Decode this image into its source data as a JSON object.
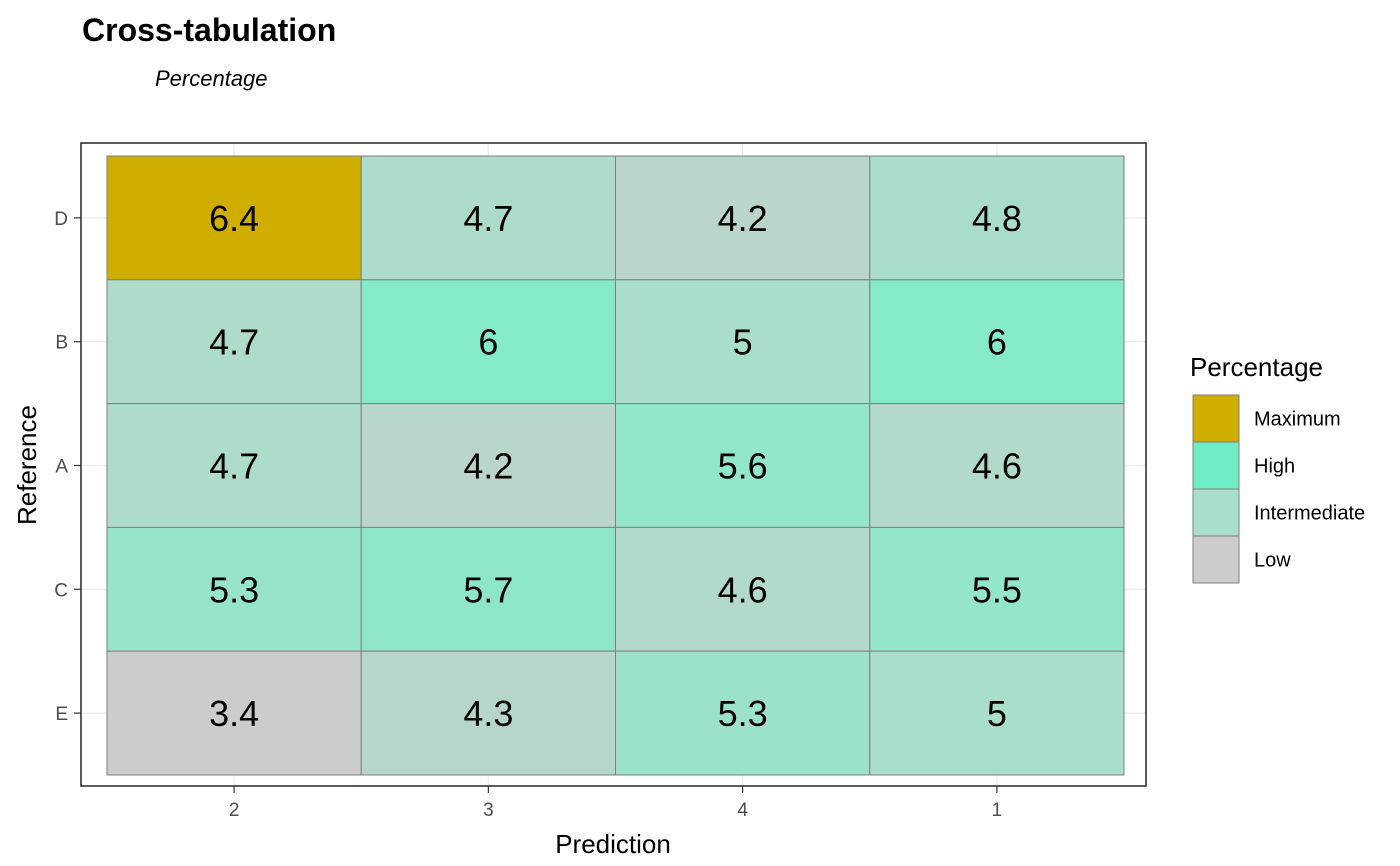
{
  "chart_data": {
    "type": "heatmap",
    "title": "Cross-tabulation",
    "subtitle": "Percentage",
    "xlabel": "Prediction",
    "ylabel": "Reference",
    "x_categories": [
      "2",
      "3",
      "4",
      "1"
    ],
    "y_categories": [
      "D",
      "B",
      "A",
      "C",
      "E"
    ],
    "values": [
      [
        6.4,
        4.7,
        4.2,
        4.8
      ],
      [
        4.7,
        6,
        5,
        6
      ],
      [
        4.7,
        4.2,
        5.6,
        4.6
      ],
      [
        5.3,
        5.7,
        4.6,
        5.5
      ],
      [
        3.4,
        4.3,
        5.3,
        5
      ]
    ],
    "cell_labels": [
      [
        "6.4",
        "4.7",
        "4.2",
        "4.8"
      ],
      [
        "4.7",
        "6",
        "5",
        "6"
      ],
      [
        "4.7",
        "4.2",
        "5.6",
        "4.6"
      ],
      [
        "5.3",
        "5.7",
        "4.6",
        "5.5"
      ],
      [
        "3.4",
        "4.3",
        "5.3",
        "5"
      ]
    ],
    "cell_colors": [
      [
        "#CFAE00",
        "#AEDCCA",
        "#BAD6CA",
        "#AADCCB"
      ],
      [
        "#AEDCCA",
        "#84EACA",
        "#A8DECA",
        "#84EACA"
      ],
      [
        "#AEDCCA",
        "#BAD6CA",
        "#92E6CA",
        "#B2DACA"
      ],
      [
        "#98E4CA",
        "#8EE6CA",
        "#B2DACA",
        "#94E6CA"
      ],
      [
        "#CCCCCC",
        "#B6D6CA",
        "#9CE2CA",
        "#A8DECA"
      ]
    ],
    "legend": {
      "title": "Percentage",
      "position": "right",
      "entries": [
        {
          "label": "Maximum",
          "color": "#CFAE00"
        },
        {
          "label": "High",
          "color": "#6FEDC8"
        },
        {
          "label": "Intermediate",
          "color": "#A8DECA"
        },
        {
          "label": "Low",
          "color": "#CCCCCC"
        }
      ]
    },
    "grid": true
  }
}
